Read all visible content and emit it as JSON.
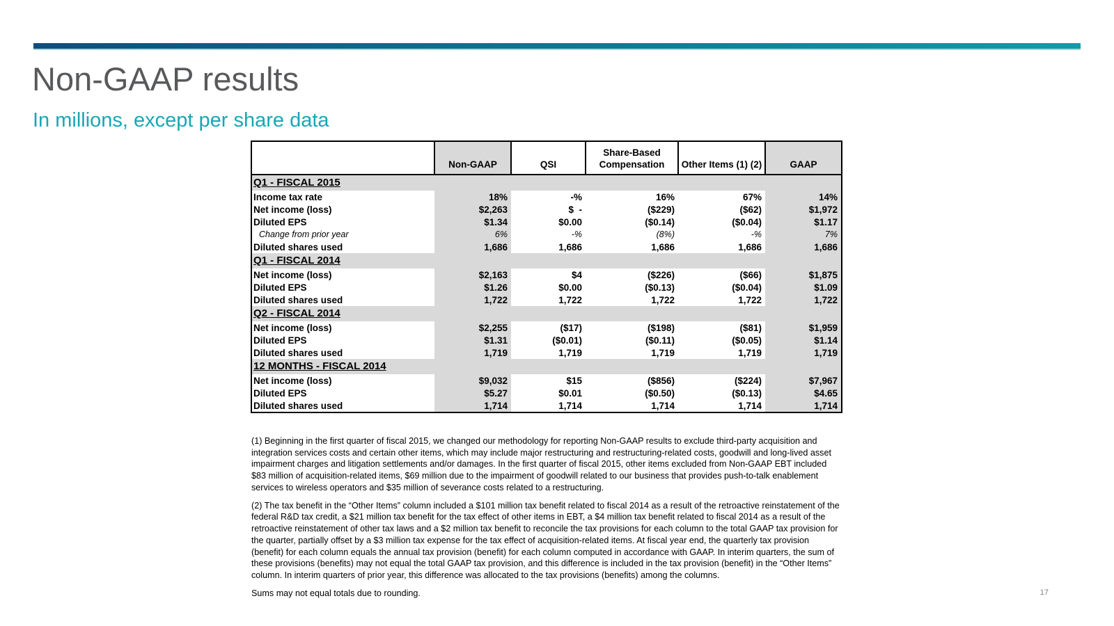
{
  "slide": {
    "title": "Non-GAAP results",
    "subtitle": "In millions, except per share data",
    "page_number": "17",
    "accent_teal": "#17a7b6",
    "bar_gradient_left": "#0d4e7e",
    "bar_gradient_right": "#0f9da9",
    "table_shade_gray": "#d9d9d9"
  },
  "table": {
    "columns": [
      "",
      "Non-GAAP",
      "QSI",
      "Share-Based Compensation",
      "Other Items (1) (2)",
      "GAAP"
    ],
    "shaded_column_indexes": [
      1,
      5
    ],
    "sections": [
      {
        "title": "Q1 - FISCAL 2015",
        "rows": [
          {
            "label": "Income tax rate",
            "values": [
              "18%",
              "-%",
              "16%",
              "67%",
              "14%"
            ]
          },
          {
            "label": "Net income (loss)",
            "values": [
              "$2,263",
              "$  -",
              "($229)",
              "($62)",
              "$1,972"
            ]
          },
          {
            "label": "Diluted EPS",
            "values": [
              "$1.34",
              "$0.00",
              "($0.14)",
              "($0.04)",
              "$1.17"
            ]
          },
          {
            "label": "Change from prior year",
            "italic": true,
            "values": [
              "6%",
              "-%",
              "(8%)",
              "-%",
              "7%"
            ]
          },
          {
            "label": "Diluted shares used",
            "values": [
              "1,686",
              "1,686",
              "1,686",
              "1,686",
              "1,686"
            ]
          }
        ]
      },
      {
        "title": "Q1 - FISCAL 2014",
        "rows": [
          {
            "label": "Net income (loss)",
            "values": [
              "$2,163",
              "$4",
              "($226)",
              "($66)",
              "$1,875"
            ]
          },
          {
            "label": "Diluted EPS",
            "values": [
              "$1.26",
              "$0.00",
              "($0.13)",
              "($0.04)",
              "$1.09"
            ]
          },
          {
            "label": "Diluted shares used",
            "values": [
              "1,722",
              "1,722",
              "1,722",
              "1,722",
              "1,722"
            ]
          }
        ]
      },
      {
        "title": "Q2 - FISCAL 2014",
        "rows": [
          {
            "label": "Net income (loss)",
            "values": [
              "$2,255",
              "($17)",
              "($198)",
              "($81)",
              "$1,959"
            ]
          },
          {
            "label": "Diluted EPS",
            "values": [
              "$1.31",
              "($0.01)",
              "($0.11)",
              "($0.05)",
              "$1.14"
            ]
          },
          {
            "label": "Diluted shares used",
            "values": [
              "1,719",
              "1,719",
              "1,719",
              "1,719",
              "1,719"
            ]
          }
        ]
      },
      {
        "title": "12 MONTHS - FISCAL 2014",
        "rows": [
          {
            "label": "Net income (loss)",
            "values": [
              "$9,032",
              "$15",
              "($856)",
              "($224)",
              "$7,967"
            ]
          },
          {
            "label": "Diluted EPS",
            "values": [
              "$5.27",
              "$0.01",
              "($0.50)",
              "($0.13)",
              "$4.65"
            ]
          },
          {
            "label": "Diluted shares used",
            "values": [
              "1,714",
              "1,714",
              "1,714",
              "1,714",
              "1,714"
            ]
          }
        ]
      }
    ]
  },
  "footnotes": [
    "(1) Beginning in the first quarter of fiscal 2015, we changed our methodology for reporting Non-GAAP results to exclude third-party acquisition and integration services costs and certain other items, which may include major restructuring and restructuring-related costs, goodwill and long-lived asset impairment charges and litigation settlements and/or damages.  In the first quarter of fiscal 2015, other items excluded from Non-GAAP EBT included $83 million of acquisition-related items, $69 million due to the impairment of goodwill related to our business that provides push-to-talk enablement services to wireless operators and $35 million of severance costs related to a restructuring.",
    "(2) The tax benefit in the “Other Items” column included a $101 million tax benefit related to fiscal 2014 as a result of the retroactive reinstatement of the federal R&D tax credit, a $21 million tax benefit for the tax effect of other items in EBT, a $4 million tax benefit related to fiscal 2014 as a result of the retroactive reinstatement of other tax laws and a $2 million tax benefit to reconcile the tax provisions for each column to the total GAAP tax provision for the quarter, partially offset by a $3 million tax expense for the tax effect of acquisition-related items.  At fiscal year end, the quarterly tax provision (benefit) for each column equals the annual tax provision (benefit) for each column computed in accordance with GAAP. In interim quarters, the sum of these provisions (benefits) may not equal the total GAAP tax provision, and this difference is included in the tax provision (benefit) in the “Other Items” column.  In interim quarters of prior year, this difference was allocated to the tax provisions (benefits) among the columns.",
    "Sums may not equal totals due to rounding."
  ]
}
